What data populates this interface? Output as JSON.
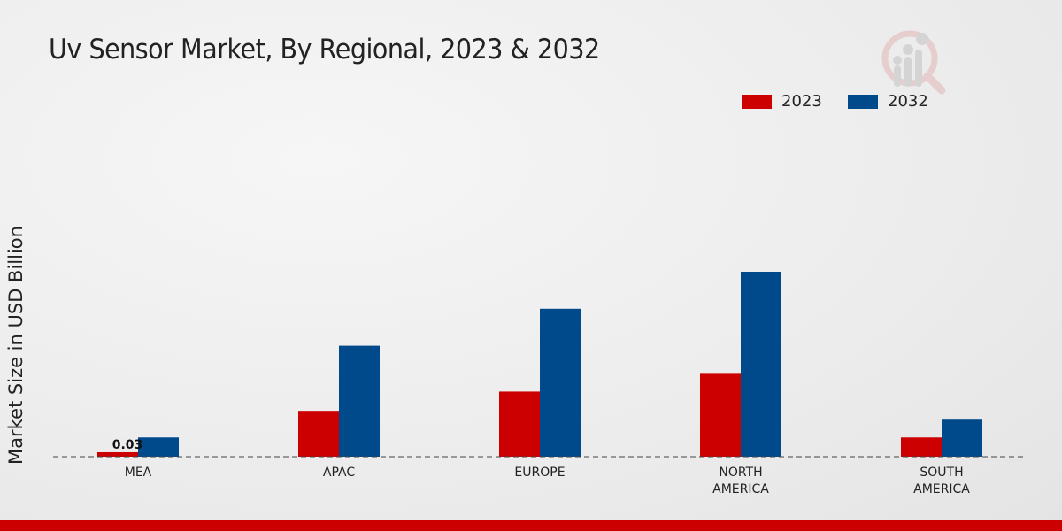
{
  "chart_data": {
    "type": "bar",
    "title": "Uv Sensor Market, By Regional, 2023 & 2032",
    "xlabel": "",
    "ylabel": "Market Size in USD Billion",
    "categories": [
      "MEA",
      "APAC",
      "EUROPE",
      "NORTH AMERICA",
      "SOUTH AMERICA"
    ],
    "category_lines": [
      [
        "MEA"
      ],
      [
        "APAC"
      ],
      [
        "EUROPE"
      ],
      [
        "NORTH",
        "AMERICA"
      ],
      [
        "SOUTH",
        "AMERICA"
      ]
    ],
    "series": [
      {
        "name": "2023",
        "color": "#cc0000",
        "values": [
          0.03,
          0.31,
          0.44,
          0.56,
          0.13
        ]
      },
      {
        "name": "2032",
        "color": "#004a8c",
        "values": [
          0.13,
          0.75,
          1.0,
          1.25,
          0.25
        ]
      }
    ],
    "data_labels": [
      {
        "series": "2023",
        "category": "MEA",
        "text": "0.03"
      }
    ],
    "legend_position": "top-right",
    "grid": false
  }
}
